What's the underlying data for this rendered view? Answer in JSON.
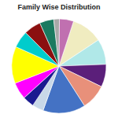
{
  "chart_data": {
    "type": "pie",
    "title": "Family Wise Distribution",
    "values": [
      11,
      9,
      8,
      9,
      15,
      4,
      4,
      6,
      13,
      6,
      6,
      5,
      2,
      5
    ],
    "colors": [
      "#F0ECC0",
      "#B0E8E8",
      "#5B1F7A",
      "#E8907A",
      "#4472C4",
      "#C8D8E8",
      "#1A1A90",
      "#FF00FF",
      "#FFFF00",
      "#00CCCC",
      "#8B1010",
      "#1A7A60",
      "#A8A8A8",
      "#C070B0"
    ]
  }
}
